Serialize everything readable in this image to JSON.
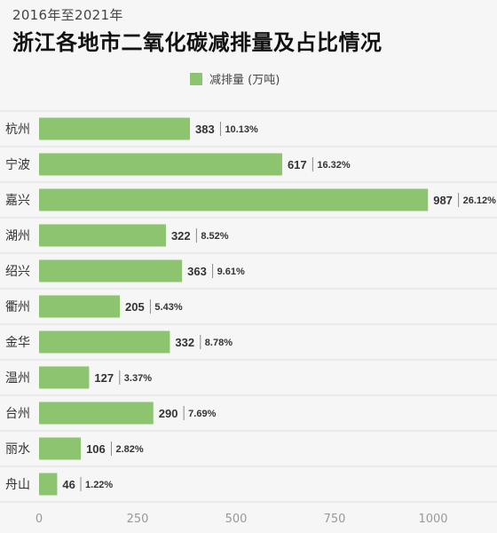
{
  "header": {
    "subtitle": "2016年至2021年",
    "title": "浙江各地市二氧化碳减排量及占比情况"
  },
  "colors": {
    "bar": "#8cc46f",
    "grid": "#dddddd",
    "background": "#f6f6f6"
  },
  "chart_data": {
    "type": "bar",
    "orientation": "horizontal",
    "title": "浙江各地市二氧化碳减排量及占比情况",
    "subtitle": "2016年至2021年",
    "categories": [
      "杭州",
      "宁波",
      "嘉兴",
      "湖州",
      "绍兴",
      "衢州",
      "金华",
      "温州",
      "台州",
      "丽水",
      "舟山"
    ],
    "series": [
      {
        "name": "减排量 (万吨)",
        "values": [
          383,
          617,
          987,
          322,
          363,
          205,
          332,
          127,
          290,
          106,
          46
        ],
        "shares": [
          "10.13%",
          "16.32%",
          "26.12%",
          "8.52%",
          "9.61%",
          "5.43%",
          "8.78%",
          "3.37%",
          "7.69%",
          "2.82%",
          "1.22%"
        ]
      }
    ],
    "xlim": [
      0,
      1000
    ],
    "xticks": [
      0,
      250,
      500,
      750,
      1000
    ],
    "grid": true,
    "legend_position": "top"
  }
}
